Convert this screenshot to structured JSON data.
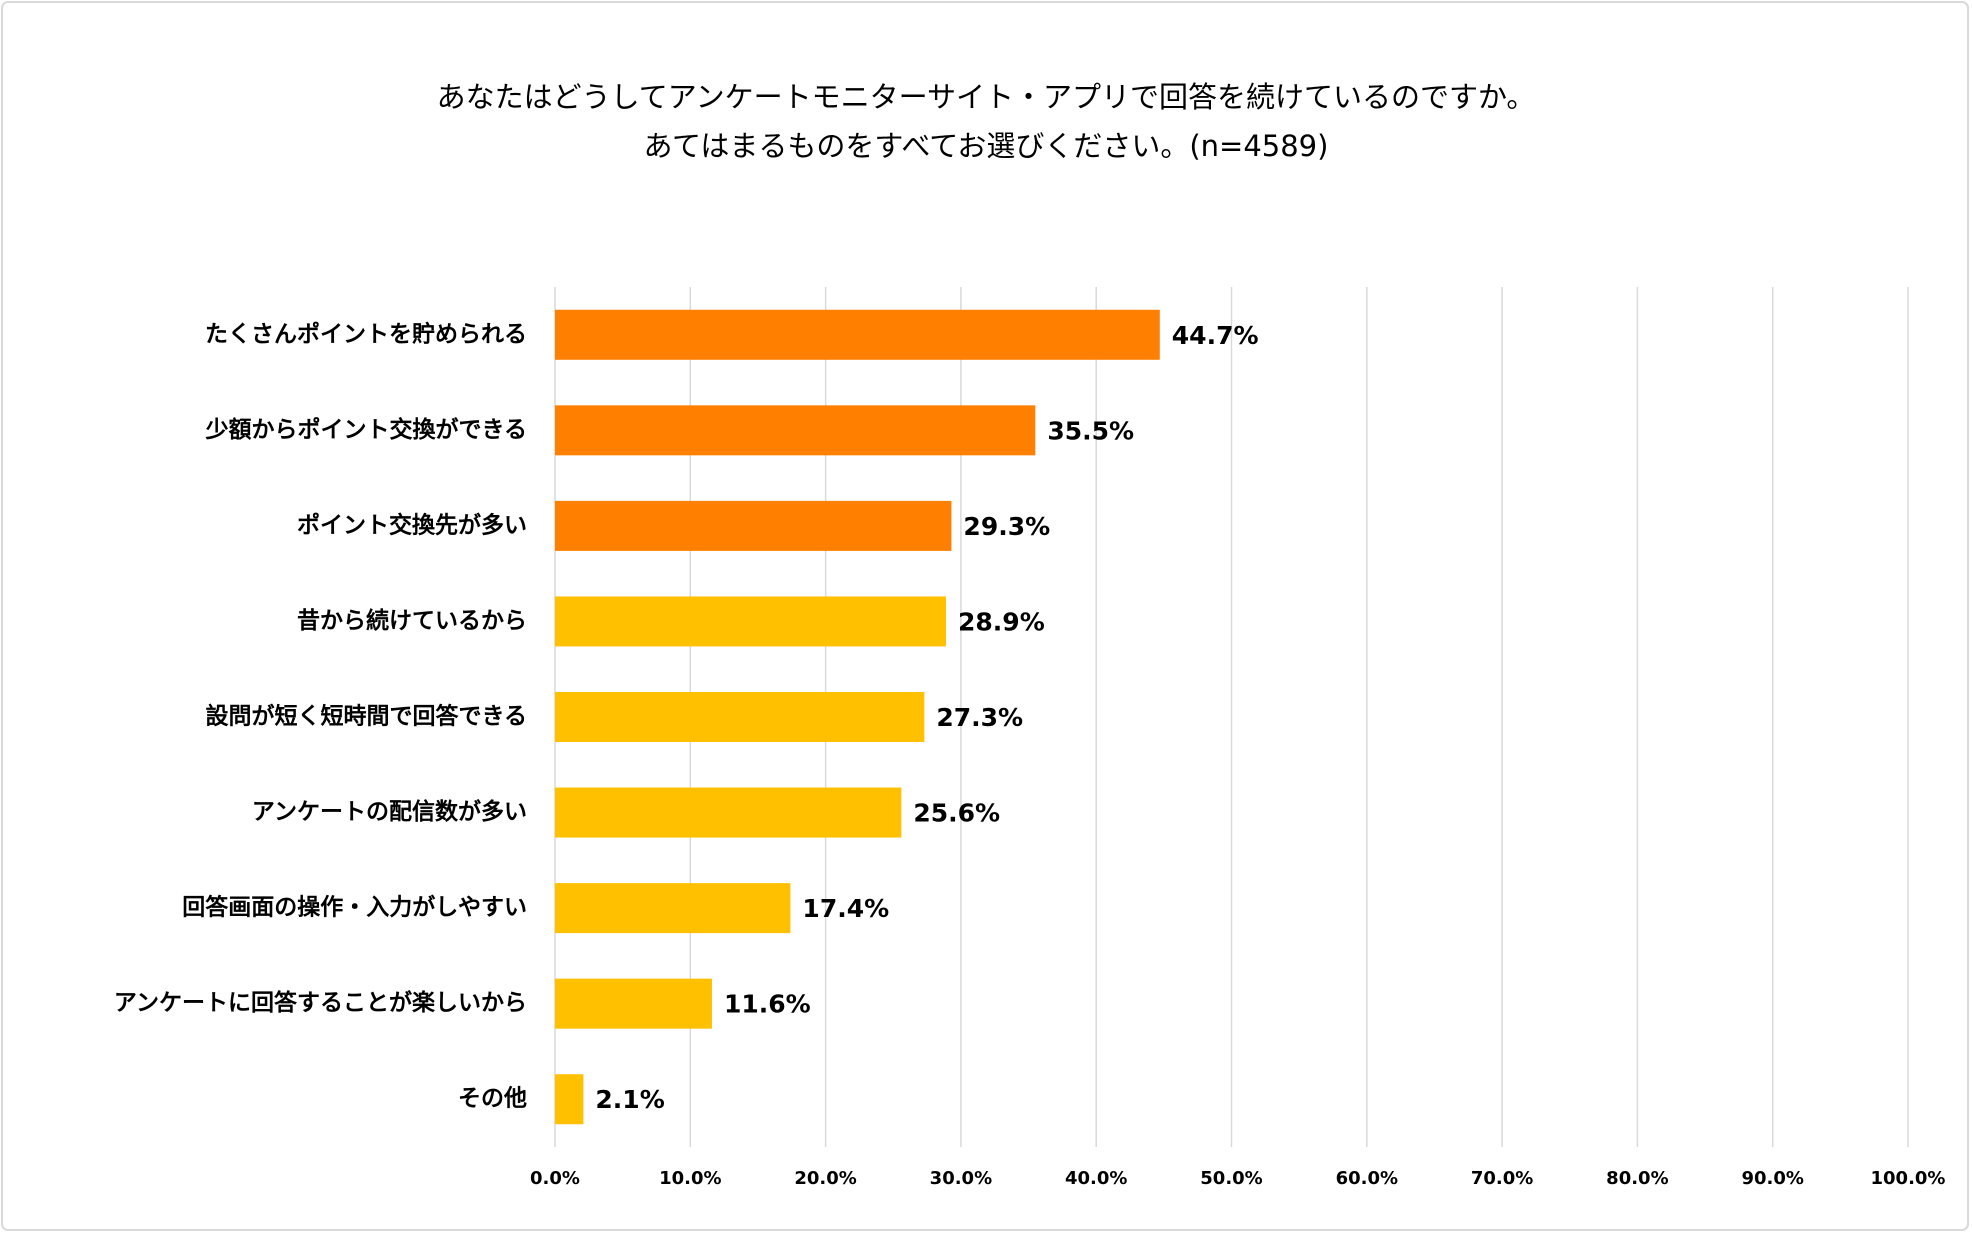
{
  "chart_data": {
    "type": "barh",
    "title": [
      "あなたはどうしてアンケートモニターサイト・アプリで回答を続けているのですか。",
      "あてはまるものをすべてお選びください。(n=4589)"
    ],
    "categories": [
      "たくさんポイントを貯められる",
      "少額からポイント交換ができる",
      "ポイント交換先が多い",
      "昔から続けているから",
      "設問が短く短時間で回答できる",
      "アンケートの配信数が多い",
      "回答画面の操作・入力がしやすい",
      "アンケートに回答することが楽しいから",
      "その他"
    ],
    "values": [
      44.7,
      35.5,
      29.3,
      28.9,
      27.3,
      25.6,
      17.4,
      11.6,
      2.1
    ],
    "value_labels": [
      "44.7%",
      "35.5%",
      "29.3%",
      "28.9%",
      "27.3%",
      "25.6%",
      "17.4%",
      "11.6%",
      "2.1%"
    ],
    "colors": [
      "#ff8000",
      "#ff8000",
      "#ff8000",
      "#ffc000",
      "#ffc000",
      "#ffc000",
      "#ffc000",
      "#ffc000",
      "#ffc000"
    ],
    "xlim": [
      0,
      100
    ],
    "xticks": [
      {
        "value": 0,
        "label": "0.0%"
      },
      {
        "value": 10,
        "label": "10.0%"
      },
      {
        "value": 20,
        "label": "20.0%"
      },
      {
        "value": 30,
        "label": "30.0%"
      },
      {
        "value": 40,
        "label": "40.0%"
      },
      {
        "value": 50,
        "label": "50.0%"
      },
      {
        "value": 60,
        "label": "60.0%"
      },
      {
        "value": 70,
        "label": "70.0%"
      },
      {
        "value": 80,
        "label": "80.0%"
      },
      {
        "value": 90,
        "label": "90.0%"
      },
      {
        "value": 100,
        "label": "100.0%"
      }
    ],
    "grid": true
  }
}
